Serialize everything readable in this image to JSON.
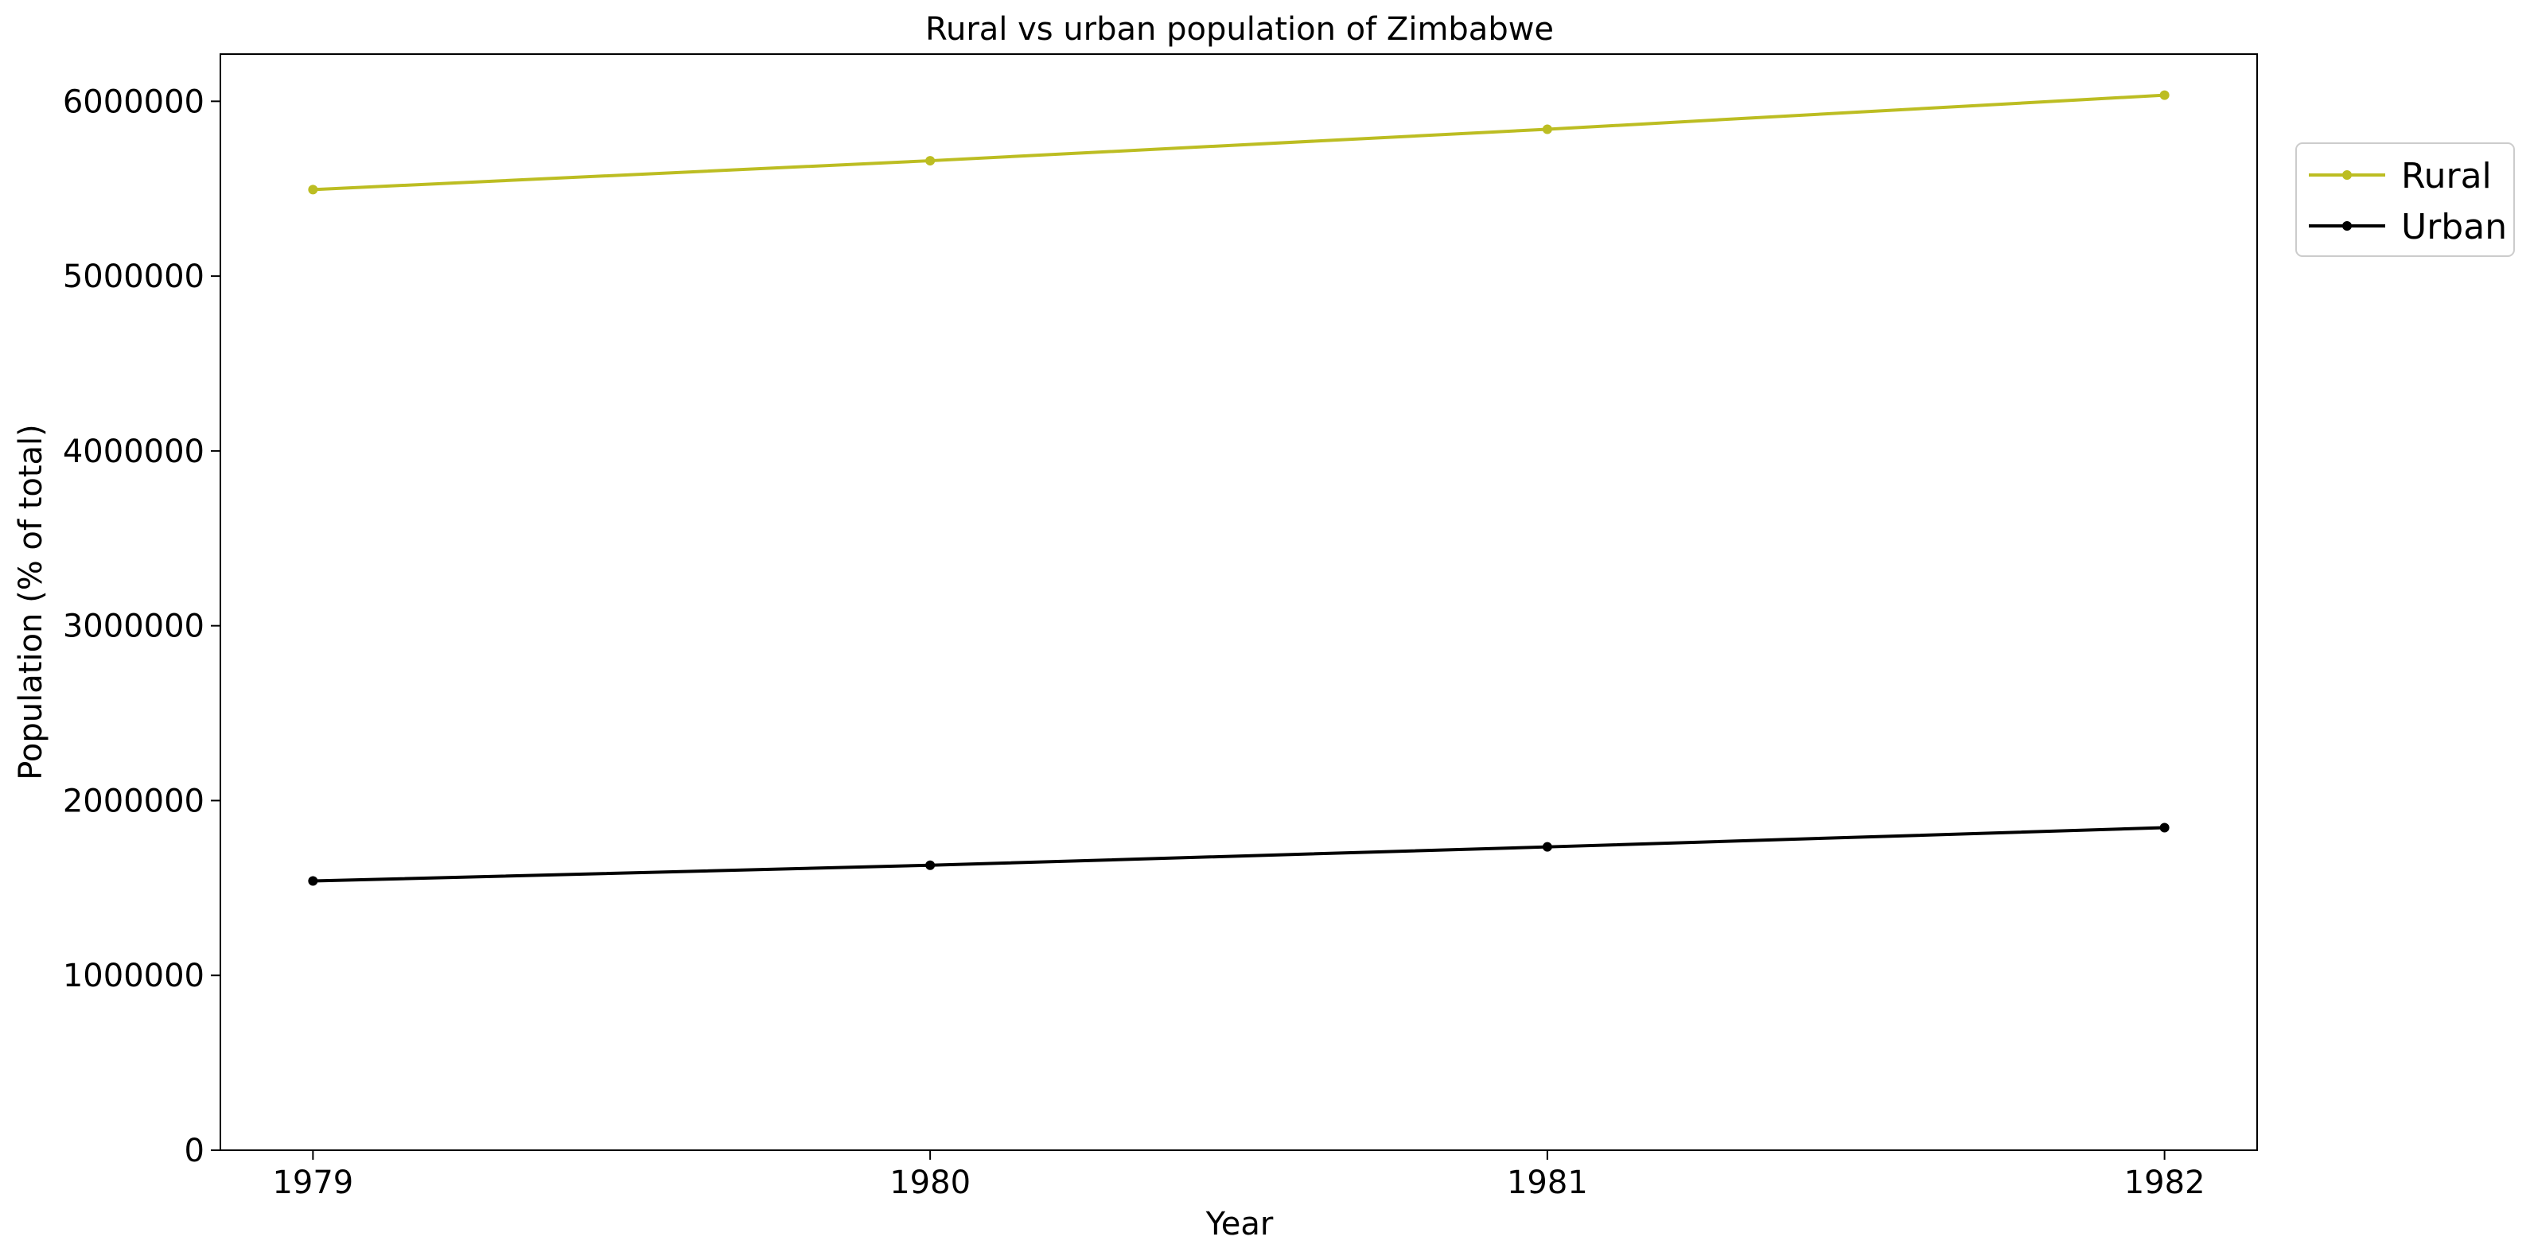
{
  "chart_data": {
    "type": "line",
    "title": "Rural vs urban population of Zimbabwe",
    "xlabel": "Year",
    "ylabel": "Population (% of total)",
    "x": [
      1979,
      1980,
      1981,
      1982
    ],
    "x_tick_labels": [
      "1979",
      "1980",
      "1981",
      "1982"
    ],
    "y_ticks": [
      0,
      1000000,
      2000000,
      3000000,
      4000000,
      5000000,
      6000000
    ],
    "y_tick_labels": [
      "0",
      "1000000",
      "2000000",
      "3000000",
      "4000000",
      "5000000",
      "6000000"
    ],
    "xlim": [
      1978.85,
      1982.15
    ],
    "ylim": [
      0,
      6270000
    ],
    "grid": false,
    "legend_position": "top-right, outside plot",
    "series": [
      {
        "name": "Rural",
        "color": "#bcbd22",
        "values": [
          5495000,
          5660000,
          5840000,
          6035000
        ]
      },
      {
        "name": "Urban",
        "color": "#000000",
        "values": [
          1540000,
          1630000,
          1735000,
          1845000
        ]
      }
    ]
  }
}
